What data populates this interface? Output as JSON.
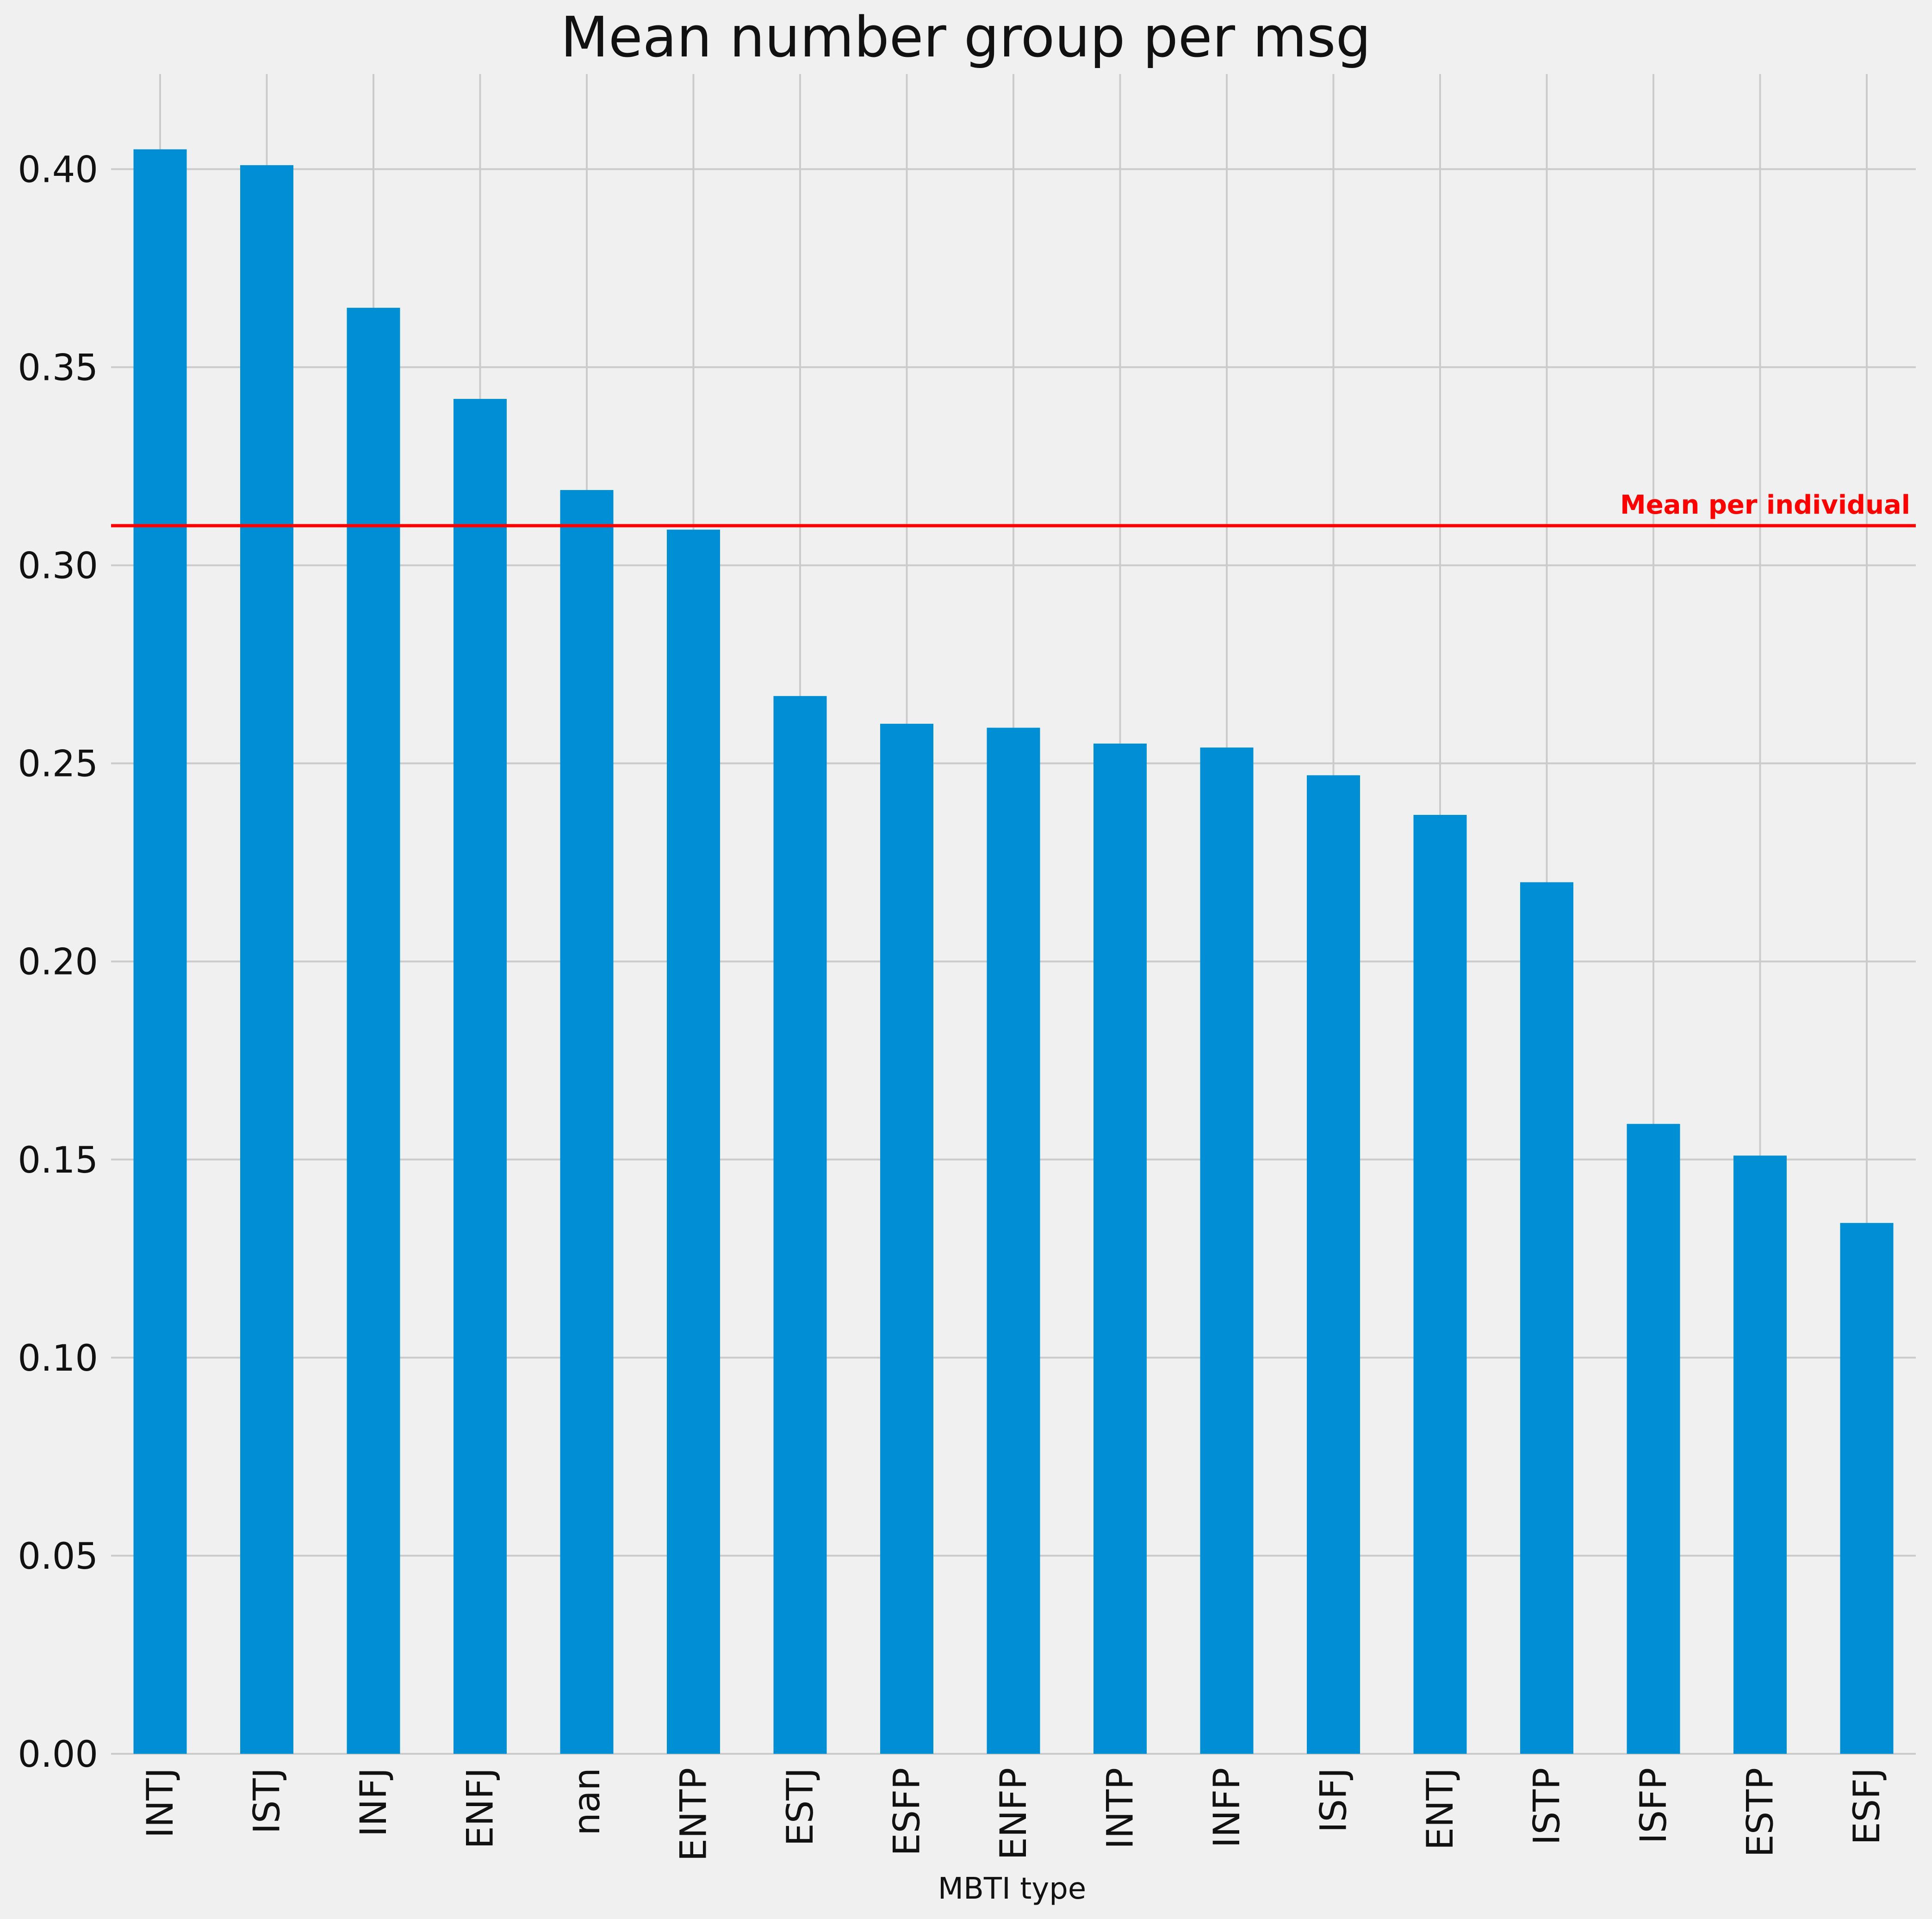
{
  "chart_data": {
    "type": "bar",
    "title": "Mean number group per msg",
    "xlabel": "MBTI type",
    "ylabel": "",
    "categories": [
      "INTJ",
      "ISTJ",
      "INFJ",
      "ENFJ",
      "nan",
      "ENTP",
      "ESTJ",
      "ESFP",
      "ENFP",
      "INTP",
      "INFP",
      "ISFJ",
      "ENTJ",
      "ISTP",
      "ISFP",
      "ESTP",
      "ESFJ"
    ],
    "values": [
      0.405,
      0.401,
      0.365,
      0.342,
      0.319,
      0.309,
      0.267,
      0.26,
      0.259,
      0.255,
      0.254,
      0.247,
      0.237,
      0.22,
      0.159,
      0.151,
      0.134
    ],
    "ylim": [
      0,
      0.424
    ],
    "yticks": [
      0.0,
      0.05,
      0.1,
      0.15,
      0.2,
      0.25,
      0.3,
      0.35,
      0.4
    ],
    "ytick_labels": [
      "0.00",
      "0.05",
      "0.10",
      "0.15",
      "0.20",
      "0.25",
      "0.30",
      "0.35",
      "0.40"
    ],
    "grid": true,
    "bar_color": "#008fd5",
    "reference_line": {
      "value": 0.31,
      "label": "Mean per individual",
      "color": "#ff0000"
    }
  }
}
